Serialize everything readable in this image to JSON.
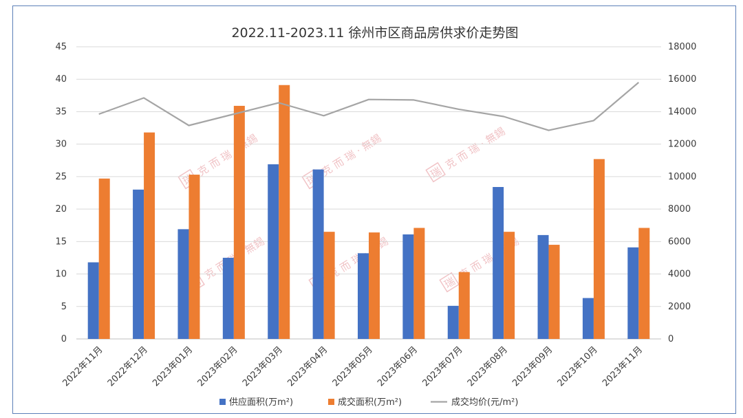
{
  "chart_data": {
    "type": "bar",
    "title": "2022.11-2023.11 徐州市区商品房供求价走势图",
    "categories": [
      "2022年11月",
      "2022年12月",
      "2023年01月",
      "2023年02月",
      "2023年03月",
      "2023年04月",
      "2023年05月",
      "2023年06月",
      "2023年07月",
      "2023年08月",
      "2023年09月",
      "2023年10月",
      "2023年11月"
    ],
    "left_axis": {
      "min": 0,
      "max": 45,
      "step": 5,
      "ticks": [
        "0",
        "5",
        "10",
        "15",
        "20",
        "25",
        "30",
        "35",
        "40",
        "45"
      ]
    },
    "right_axis": {
      "min": 0,
      "max": 18000,
      "step": 2000,
      "ticks": [
        "0",
        "2000",
        "4000",
        "6000",
        "8000",
        "10000",
        "12000",
        "14000",
        "16000",
        "18000"
      ]
    },
    "grid": true,
    "legend_position": "bottom",
    "series": [
      {
        "name": "供应面积(万m²)",
        "type": "bar",
        "axis": "left",
        "color": "#4472c4",
        "values": [
          11.8,
          23.0,
          16.9,
          12.5,
          26.9,
          26.1,
          13.2,
          16.1,
          5.1,
          23.4,
          16.0,
          6.3,
          14.1
        ]
      },
      {
        "name": "成交面积(万m²)",
        "type": "bar",
        "axis": "left",
        "color": "#ed7d31",
        "values": [
          24.7,
          31.8,
          25.3,
          35.9,
          39.1,
          16.5,
          16.4,
          17.1,
          10.3,
          16.5,
          14.5,
          27.7,
          17.1
        ]
      },
      {
        "name": "成交均价(元/m²)",
        "type": "line",
        "axis": "right",
        "color": "#a5a5a5",
        "values": [
          13850,
          14850,
          13150,
          13850,
          14550,
          13750,
          14750,
          14720,
          14150,
          13700,
          12850,
          13450,
          15800
        ]
      }
    ]
  },
  "watermark": {
    "text": "克 而 瑞 · 無錫",
    "stamp": "瑞"
  }
}
